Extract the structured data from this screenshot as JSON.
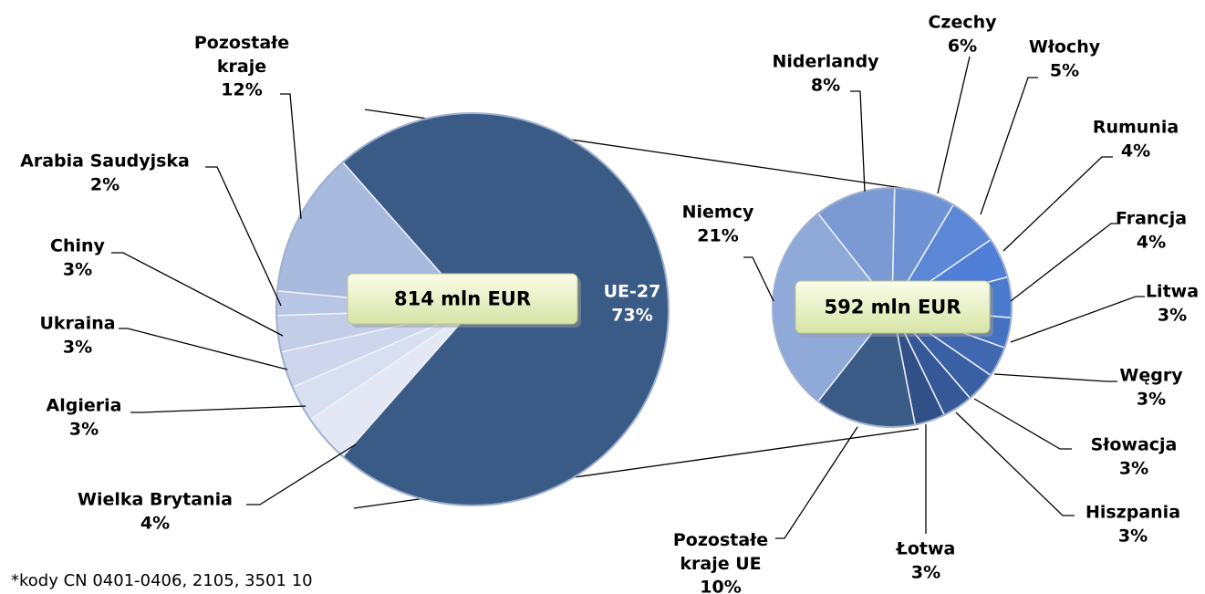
{
  "chart_data": [
    {
      "type": "pie",
      "categories": [
        "UE-27",
        "Wielka Brytania",
        "Algieria",
        "Ukraina",
        "Chiny",
        "Arabia Saudyjska",
        "Pozostałe kraje"
      ],
      "values": [
        73,
        4,
        3,
        3,
        3,
        2,
        12
      ],
      "value_labels": [
        "73%",
        "4%",
        "3%",
        "3%",
        "3%",
        "2%",
        "12%"
      ],
      "colors": [
        "#3b5b87",
        "#e3e8f4",
        "#d8dff0",
        "#cdd6ec",
        "#c3cde8",
        "#b9c5e4",
        "#a9badf"
      ],
      "center_label": "814 mln EUR"
    },
    {
      "type": "pie",
      "categories": [
        "Niemcy",
        "Niderlandy",
        "Czechy",
        "Włochy",
        "Rumunia",
        "Francja",
        "Litwa",
        "Węgry",
        "Słowacja",
        "Hiszpania",
        "Łotwa",
        "Pozostałe kraje UE"
      ],
      "values": [
        21,
        8,
        6,
        5,
        4,
        4,
        3,
        3,
        3,
        3,
        3,
        10
      ],
      "value_labels": [
        "21%",
        "8%",
        "6%",
        "5%",
        "4%",
        "4%",
        "3%",
        "3%",
        "3%",
        "3%",
        "3%",
        "10%"
      ],
      "colors": [
        "#8fa9d9",
        "#7b9ad3",
        "#6f92d4",
        "#5b87d6",
        "#4f7fd6",
        "#4a7acc",
        "#4472c0",
        "#3f68b0",
        "#3a60a4",
        "#365898",
        "#325088",
        "#3b5b87"
      ],
      "center_label": "592 mln EUR"
    }
  ],
  "footnote": "*kody CN 0401-0406, 2105, 3501 10"
}
